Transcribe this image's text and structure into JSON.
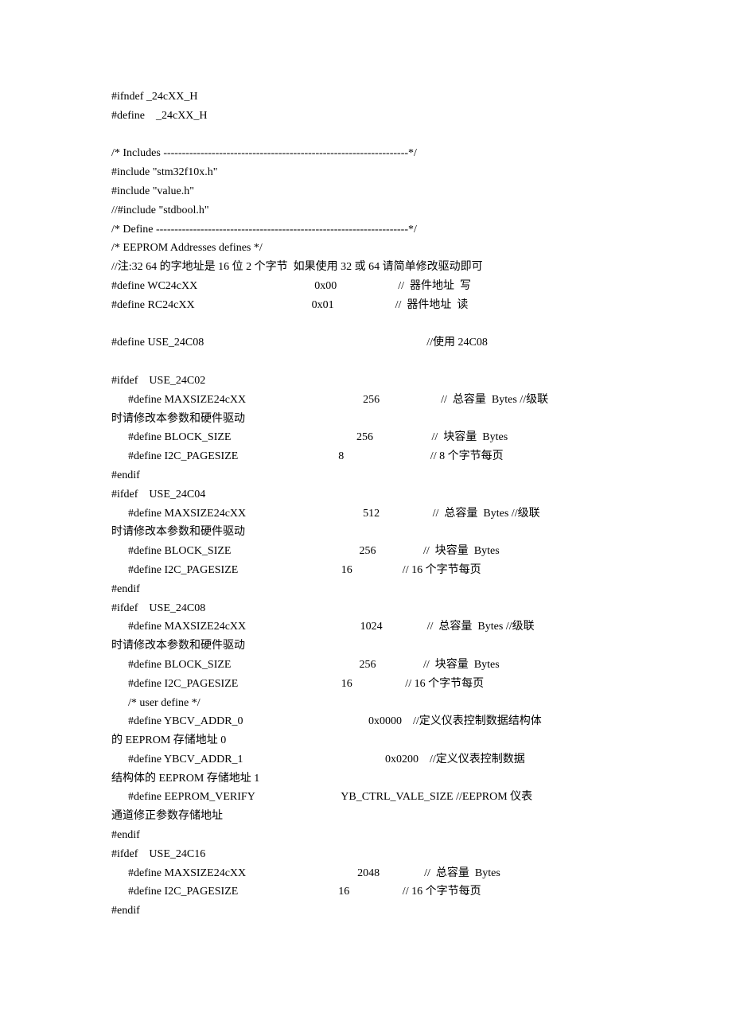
{
  "lines": [
    "#ifndef _24cXX_H",
    "#define    _24cXX_H",
    "",
    "/* Includes ------------------------------------------------------------------*/",
    "#include \"stm32f10x.h\"",
    "#include \"value.h\"",
    "//#include \"stdbool.h\"",
    "/* Define --------------------------------------------------------------------*/",
    "/* EEPROM Addresses defines */",
    "//注:32 64 的字地址是 16 位 2 个字节  如果使用 32 或 64 请简单修改驱动即可",
    "#define WC24cXX                                          0x00                      //  器件地址  写",
    "#define RC24cXX                                          0x01                      //  器件地址  读",
    "",
    "#define USE_24C08                                                                                //使用 24C08",
    "",
    "#ifdef    USE_24C02",
    "      #define MAXSIZE24cXX                                          256                      //  总容量  Bytes //级联",
    "时请修改本参数和硬件驱动",
    "      #define BLOCK_SIZE                                             256                     //  块容量  Bytes",
    "      #define I2C_PAGESIZE                                    8                               // 8 个字节每页",
    "#endif",
    "#ifdef    USE_24C04",
    "      #define MAXSIZE24cXX                                          512                   //  总容量  Bytes //级联",
    "时请修改本参数和硬件驱动",
    "      #define BLOCK_SIZE                                              256                 //  块容量  Bytes",
    "      #define I2C_PAGESIZE                                     16                  // 16 个字节每页",
    "#endif",
    "#ifdef    USE_24C08",
    "      #define MAXSIZE24cXX                                         1024                //  总容量  Bytes //级联",
    "时请修改本参数和硬件驱动",
    "      #define BLOCK_SIZE                                              256                 //  块容量  Bytes",
    "      #define I2C_PAGESIZE                                     16                   // 16 个字节每页",
    "      /* user define */",
    "      #define YBCV_ADDR_0                                             0x0000    //定义仪表控制数据结构体",
    "的 EEPROM 存储地址 0",
    "      #define YBCV_ADDR_1                                                   0x0200    //定义仪表控制数据",
    "结构体的 EEPROM 存储地址 1",
    "      #define EEPROM_VERIFY                               YB_CTRL_VALE_SIZE //EEPROM 仪表",
    "通道修正参数存储地址",
    "#endif",
    "#ifdef    USE_24C16",
    "      #define MAXSIZE24cXX                                        2048                //  总容量  Bytes",
    "      #define I2C_PAGESIZE                                    16                   // 16 个字节每页",
    "#endif"
  ]
}
